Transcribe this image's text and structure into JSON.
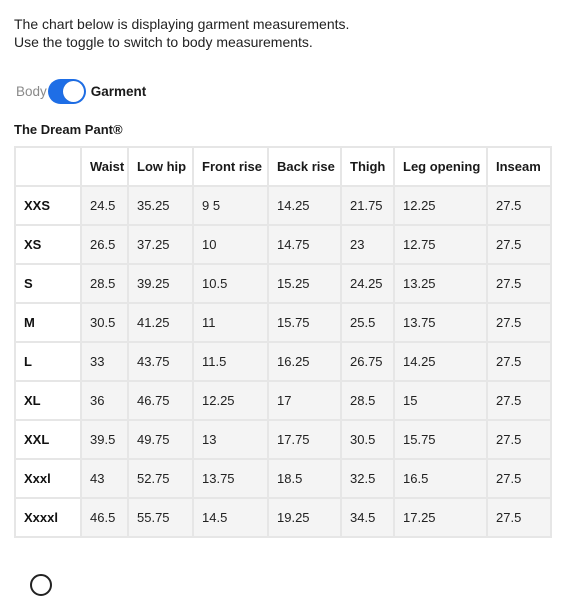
{
  "intro": {
    "line1": "The chart below is displaying garment measurements.",
    "line2": "Use the toggle to switch to body measurements."
  },
  "toggle": {
    "left_label": "Body",
    "right_label": "Garment",
    "state": "Garment",
    "accent_color": "#1e6ee6"
  },
  "product": {
    "title": "The Dream Pant®"
  },
  "table": {
    "headers": [
      "",
      "Waist",
      "Low hip",
      "Front rise",
      "Back rise",
      "Thigh",
      "Leg opening",
      "Inseam"
    ],
    "rows": [
      [
        "XXS",
        "24.5",
        "35.25",
        "9 5",
        "14.25",
        "21.75",
        "12.25",
        "27.5"
      ],
      [
        "XS",
        "26.5",
        "37.25",
        "10",
        "14.75",
        "23",
        "12.75",
        "27.5"
      ],
      [
        "S",
        "28.5",
        "39.25",
        "10.5",
        "15.25",
        "24.25",
        "13.25",
        "27.5"
      ],
      [
        "M",
        "30.5",
        "41.25",
        "11",
        "15.75",
        "25.5",
        "13.75",
        "27.5"
      ],
      [
        "L",
        "33",
        "43.75",
        "11.5",
        "16.25",
        "26.75",
        "14.25",
        "27.5"
      ],
      [
        "XL",
        "36",
        "46.75",
        "12.25",
        "17",
        "28.5",
        "15",
        "27.5"
      ],
      [
        "XXL",
        "39.5",
        "49.75",
        "13",
        "17.75",
        "30.5",
        "15.75",
        "27.5"
      ],
      [
        "Xxxl",
        "43",
        "52.75",
        "13.75",
        "18.5",
        "32.5",
        "16.5",
        "27.5"
      ],
      [
        "Xxxxl",
        "46.5",
        "55.75",
        "14.5",
        "19.25",
        "34.5",
        "17.25",
        "27.5"
      ]
    ]
  }
}
